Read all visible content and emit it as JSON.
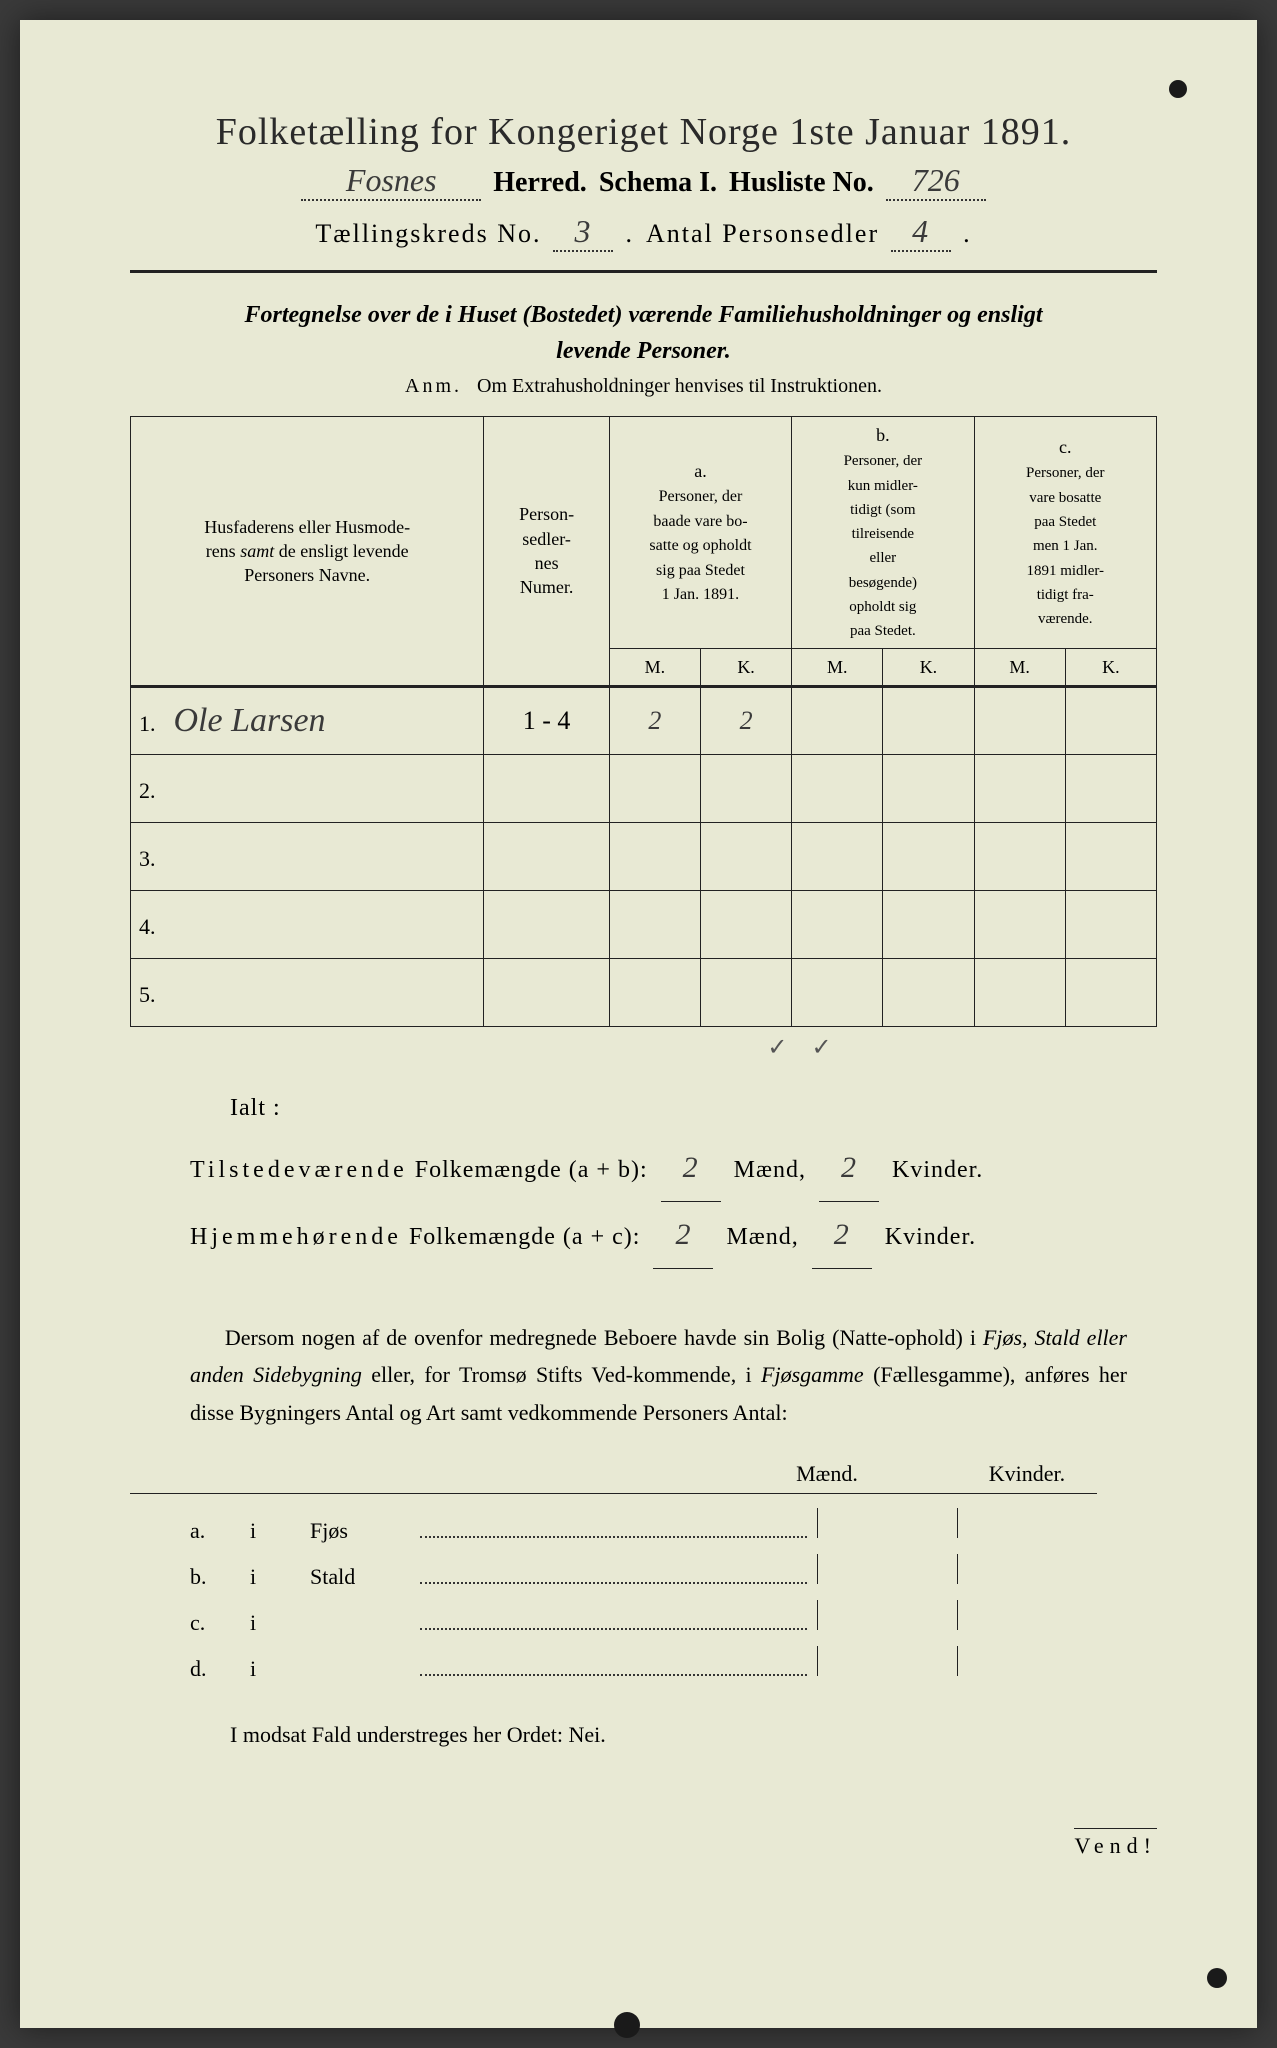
{
  "header": {
    "title": "Folketælling for Kongeriget Norge 1ste Januar 1891.",
    "herred_hand": "Fosnes",
    "herred_label": "Herred.",
    "schema_label": "Schema I.",
    "husliste_label": "Husliste No.",
    "husliste_hand": "726",
    "kreds_label": "Tællingskreds No.",
    "kreds_hand": "3",
    "antal_label": "Antal Personsedler",
    "antal_hand": "4"
  },
  "subtitle": {
    "line1": "Fortegnelse over de i Huset (Bostedet) værende Familiehusholdninger og ensligt",
    "line2": "levende Personer."
  },
  "anm": {
    "prefix": "Anm.",
    "text": "Om Extrahusholdninger henvises til Instruktionen."
  },
  "table": {
    "col_name": "Husfaderens eller Husmoderens samt de ensligt levende Personers Navne.",
    "col_num": "Person-sedler-nes Numer.",
    "col_a_head": "a.",
    "col_a": "Personer, der baade vare bosatte og opholdt sig paa Stedet 1 Jan. 1891.",
    "col_b_head": "b.",
    "col_b": "Personer, der kun midlertidigt (som tilreisende eller besøgende) opholdt sig paa Stedet.",
    "col_c_head": "c.",
    "col_c": "Personer, der vare bosatte paa Stedet men 1 Jan. 1891 midlertidigt fraværende.",
    "M": "M.",
    "K": "K.",
    "rows": [
      {
        "n": "1.",
        "name": "Ole Larsen",
        "num": "1 - 4",
        "aM": "2",
        "aK": "2",
        "bM": "",
        "bK": "",
        "cM": "",
        "cK": ""
      },
      {
        "n": "2.",
        "name": "",
        "num": "",
        "aM": "",
        "aK": "",
        "bM": "",
        "bK": "",
        "cM": "",
        "cK": ""
      },
      {
        "n": "3.",
        "name": "",
        "num": "",
        "aM": "",
        "aK": "",
        "bM": "",
        "bK": "",
        "cM": "",
        "cK": ""
      },
      {
        "n": "4.",
        "name": "",
        "num": "",
        "aM": "",
        "aK": "",
        "bM": "",
        "bK": "",
        "cM": "",
        "cK": ""
      },
      {
        "n": "5.",
        "name": "",
        "num": "",
        "aM": "",
        "aK": "",
        "bM": "",
        "bK": "",
        "cM": "",
        "cK": ""
      }
    ]
  },
  "totals": {
    "ialt": "Ialt :",
    "tilstede": "Tilstedeværende Folkemængde (a + b):",
    "hjemme": "Hjemmehørende Folkemængde (a + c):",
    "maend": "Mænd,",
    "kvinder": "Kvinder.",
    "t_m": "2",
    "t_k": "2",
    "h_m": "2",
    "h_k": "2"
  },
  "para": "Dersom nogen af de ovenfor medregnede Beboere havde sin Bolig (Natteophold) i Fjøs, Stald eller anden Sidebygning eller, for Tromsø Stifts Vedkommende, i Fjøsgamme (Fællesgamme), anføres her disse Bygningers Antal og Art samt vedkommende Personers Antal:",
  "side": {
    "maend": "Mænd.",
    "kvinder": "Kvinder.",
    "rows": [
      {
        "a": "a.",
        "i": "i",
        "label": "Fjøs"
      },
      {
        "a": "b.",
        "i": "i",
        "label": "Stald"
      },
      {
        "a": "c.",
        "i": "i",
        "label": ""
      },
      {
        "a": "d.",
        "i": "i",
        "label": ""
      }
    ]
  },
  "nei": "I modsat Fald understreges her Ordet: Nei.",
  "vend": "Vend!",
  "colors": {
    "paper": "#e8e9d4",
    "ink": "#2a2a2a",
    "hand": "#3a3a3a"
  }
}
